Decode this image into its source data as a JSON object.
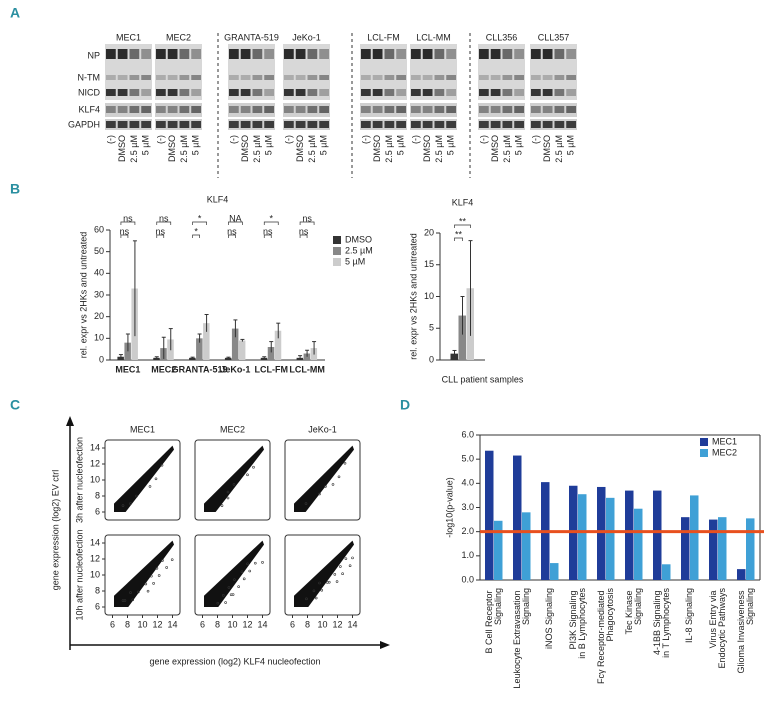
{
  "panel_labels": [
    "A",
    "B",
    "C",
    "D"
  ],
  "blot": {
    "groups": [
      "MEC1",
      "MEC2",
      "GRANTA-519",
      "JeKo-1",
      "LCL-FM",
      "LCL-MM",
      "CLL356",
      "CLL357"
    ],
    "rows": [
      "NP",
      "N-TM",
      "NICD",
      "KLF4",
      "GAPDH"
    ],
    "lanes": [
      "(-)",
      "DMSO",
      "2.5 µM",
      "5 µM"
    ]
  },
  "chart_data": [
    {
      "type": "bar",
      "title": "KLF4",
      "ylabel": "rel. expr vs 2HKs and untreated",
      "categories": [
        "MEC1",
        "MEC2",
        "GRANTA-519",
        "JeKo-1",
        "LCL-FM",
        "LCL-MM"
      ],
      "series": [
        {
          "name": "DMSO",
          "color": "#333333",
          "values": [
            1.5,
            1,
            1,
            1,
            1,
            1
          ],
          "errors": [
            1,
            0.5,
            0.3,
            0.3,
            0.5,
            1
          ]
        },
        {
          "name": "2.5 µM",
          "color": "#888888",
          "values": [
            8,
            5.5,
            10,
            14.5,
            6,
            3
          ],
          "errors": [
            4,
            5,
            2,
            4,
            2.5,
            1.5
          ]
        },
        {
          "name": "5 µM",
          "color": "#cccccc",
          "values": [
            33,
            9.5,
            17,
            9,
            13.5,
            5.5
          ],
          "errors": [
            22,
            5,
            4,
            0.5,
            3.5,
            3
          ]
        }
      ],
      "significance": [
        [
          "ns",
          "ns"
        ],
        [
          "ns",
          "ns"
        ],
        [
          "*",
          "*"
        ],
        [
          "NA",
          "ns"
        ],
        [
          "*",
          "ns"
        ],
        [
          "ns",
          "ns"
        ]
      ],
      "ylim": [
        0,
        60
      ],
      "yticks": [
        0,
        10,
        20,
        30,
        40,
        50,
        60
      ],
      "legend": "top-right"
    },
    {
      "type": "bar",
      "title": "KLF4",
      "ylabel": "rel. expr vs 2HKs and untreated",
      "categories": [
        "CLL patient samples"
      ],
      "series": [
        {
          "name": "DMSO",
          "color": "#333333",
          "values": [
            1
          ],
          "errors": [
            0.5
          ]
        },
        {
          "name": "2.5 µM",
          "color": "#888888",
          "values": [
            7
          ],
          "errors": [
            3
          ]
        },
        {
          "name": "5 µM",
          "color": "#cccccc",
          "values": [
            11.3
          ],
          "errors": [
            7.5
          ]
        }
      ],
      "significance": [
        [
          "**",
          "**"
        ]
      ],
      "ylim": [
        0,
        20
      ],
      "yticks": [
        0,
        5,
        10,
        15,
        20
      ]
    },
    {
      "type": "scatter",
      "columns": [
        "MEC1",
        "MEC2",
        "JeKo-1"
      ],
      "rows": [
        "3h after nucleofection",
        "10h after nucleofection"
      ],
      "xlabel": "gene expression (log2) KLF4 nucleofection",
      "ylabel": "gene expression (log2) EV ctrl",
      "xlim": [
        5,
        15
      ],
      "ylim": [
        5,
        15
      ],
      "xticks": [
        6,
        8,
        10,
        12,
        14
      ],
      "yticks": [
        6,
        8,
        10,
        12,
        14
      ]
    },
    {
      "type": "bar",
      "ylabel": "-log10(p-value)",
      "categories": [
        "B Cell Receptor Signaling",
        "Leukocyte Extravasation Signaling",
        "iNOS Signaling",
        "PI3K Signaling in B Lymphocytes",
        "Fcγ Receptor-mediated Phagocytosis",
        "Tec Kinase Signaling",
        "4-1BB Signaling in T Lymphocytes",
        "IL-8 Signaling",
        "Virus Entry via Endocytic Pathways",
        "Glioma Invasiveness Signaling"
      ],
      "series": [
        {
          "name": "MEC1",
          "color": "#1f3c99",
          "values": [
            5.35,
            5.15,
            4.05,
            3.9,
            3.85,
            3.7,
            3.7,
            2.6,
            2.5,
            0.45
          ]
        },
        {
          "name": "MEC2",
          "color": "#3fa0d6",
          "values": [
            2.45,
            2.8,
            0.7,
            3.55,
            3.4,
            2.95,
            0.65,
            3.5,
            2.6,
            2.55
          ]
        }
      ],
      "threshold": {
        "value": 2,
        "color": "#e8501e"
      },
      "ylim": [
        0,
        6
      ],
      "yticks": [
        {
          "value": 0,
          "label": "0.0"
        },
        {
          "value": 1,
          "label": "1.0"
        },
        {
          "value": 2,
          "label": "2.0"
        },
        {
          "value": 3,
          "label": "3.0"
        },
        {
          "value": 4,
          "label": "4.0"
        },
        {
          "value": 5,
          "label": "5.0"
        },
        {
          "value": 6,
          "label": "6.0"
        }
      ],
      "legend": "top-right"
    }
  ]
}
